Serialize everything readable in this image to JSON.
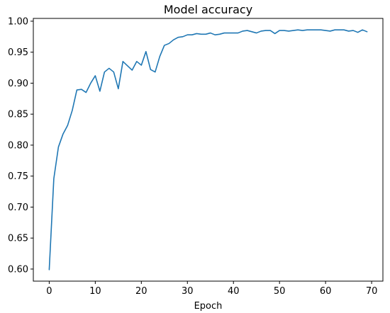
{
  "chart_data": {
    "type": "line",
    "title": "Model accuracy",
    "xlabel": "Epoch",
    "ylabel": "",
    "xlim": [
      -3.45,
      72.45
    ],
    "ylim": [
      0.5805,
      1.0045
    ],
    "xticks": [
      0,
      10,
      20,
      30,
      40,
      50,
      60,
      70
    ],
    "xtick_labels": [
      "0",
      "10",
      "20",
      "30",
      "40",
      "50",
      "60",
      "70"
    ],
    "yticks": [
      0.6,
      0.65,
      0.7,
      0.75,
      0.8,
      0.85,
      0.9,
      0.95,
      1.0
    ],
    "ytick_labels": [
      "0.60",
      "0.65",
      "0.70",
      "0.75",
      "0.80",
      "0.85",
      "0.90",
      "0.95",
      "1.00"
    ],
    "grid": false,
    "legend": "none",
    "series": [
      {
        "color": "#1f77b4",
        "x": [
          0,
          1,
          2,
          3,
          4,
          5,
          6,
          7,
          8,
          9,
          10,
          11,
          12,
          13,
          14,
          15,
          16,
          17,
          18,
          19,
          20,
          21,
          22,
          23,
          24,
          25,
          26,
          27,
          28,
          29,
          30,
          31,
          32,
          33,
          34,
          35,
          36,
          37,
          38,
          39,
          40,
          41,
          42,
          43,
          44,
          45,
          46,
          47,
          48,
          49,
          50,
          51,
          52,
          53,
          54,
          55,
          56,
          57,
          58,
          59,
          60,
          61,
          62,
          63,
          64,
          65,
          66,
          67,
          68,
          69
        ],
        "values": [
          0.599,
          0.746,
          0.797,
          0.818,
          0.832,
          0.856,
          0.889,
          0.89,
          0.885,
          0.9,
          0.912,
          0.887,
          0.918,
          0.924,
          0.918,
          0.891,
          0.935,
          0.928,
          0.921,
          0.935,
          0.929,
          0.951,
          0.922,
          0.918,
          0.943,
          0.961,
          0.964,
          0.97,
          0.974,
          0.975,
          0.978,
          0.978,
          0.98,
          0.979,
          0.979,
          0.981,
          0.978,
          0.979,
          0.981,
          0.981,
          0.981,
          0.981,
          0.984,
          0.985,
          0.983,
          0.981,
          0.984,
          0.985,
          0.985,
          0.98,
          0.985,
          0.985,
          0.984,
          0.985,
          0.986,
          0.985,
          0.986,
          0.986,
          0.986,
          0.986,
          0.985,
          0.984,
          0.986,
          0.986,
          0.986,
          0.984,
          0.985,
          0.982,
          0.986,
          0.983
        ]
      }
    ]
  }
}
